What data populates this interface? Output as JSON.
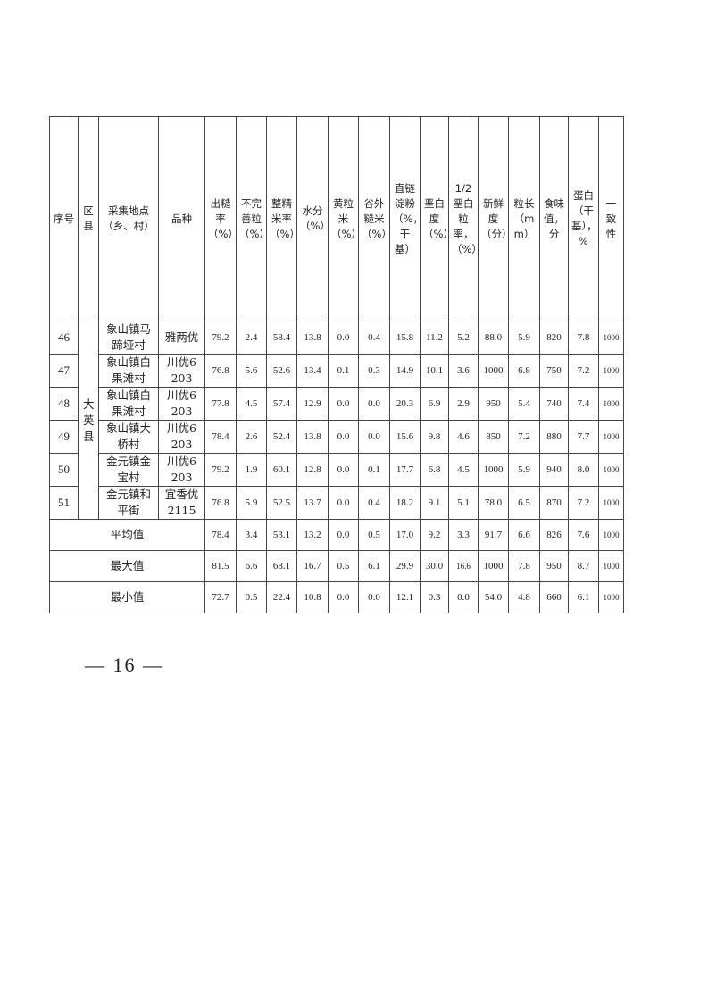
{
  "headers": [
    "序号",
    "区县",
    "采集地点（乡、村）",
    "品种",
    "出糙率（%）",
    "不完善粒（%）",
    "整精米率（%）",
    "水分（%）",
    "黄粒米（%）",
    "谷外糙米（%）",
    "直链淀粉（%，干基）",
    "垩白度（%）",
    "1/2垩白粒率，（%）",
    "新鲜度（分）",
    "粒长（mm）",
    "食味值，分",
    "蛋白（干基），%",
    "一致性"
  ],
  "county": "大英县",
  "rows": [
    {
      "no": "46",
      "place": "象山镇马蹄垭村",
      "variety": "雅两优",
      "v": [
        "79.2",
        "2.4",
        "58.4",
        "13.8",
        "0.0",
        "0.4",
        "15.8",
        "11.2",
        "5.2",
        "88.0",
        "5.9",
        "820",
        "7.8",
        "1000"
      ]
    },
    {
      "no": "47",
      "place": "象山镇白果滩村",
      "variety": "川优6203",
      "v": [
        "76.8",
        "5.6",
        "52.6",
        "13.4",
        "0.1",
        "0.3",
        "14.9",
        "10.1",
        "3.6",
        "1000",
        "6.8",
        "750",
        "7.2",
        "1000"
      ]
    },
    {
      "no": "48",
      "place": "象山镇白果滩村",
      "variety": "川优6203",
      "v": [
        "77.8",
        "4.5",
        "57.4",
        "12.9",
        "0.0",
        "0.0",
        "20.3",
        "6.9",
        "2.9",
        "950",
        "5.4",
        "740",
        "7.4",
        "1000"
      ]
    },
    {
      "no": "49",
      "place": "象山镇大桥村",
      "variety": "川优6203",
      "v": [
        "78.4",
        "2.6",
        "52.4",
        "13.8",
        "0.0",
        "0.0",
        "15.6",
        "9.8",
        "4.6",
        "850",
        "7.2",
        "880",
        "7.7",
        "1000"
      ]
    },
    {
      "no": "50",
      "place": "金元镇金宝村",
      "variety": "川优6203",
      "v": [
        "79.2",
        "1.9",
        "60.1",
        "12.8",
        "0.0",
        "0.1",
        "17.7",
        "6.8",
        "4.5",
        "1000",
        "5.9",
        "940",
        "8.0",
        "1000"
      ]
    },
    {
      "no": "51",
      "place": "金元镇和平街",
      "variety": "宜香优2115",
      "v": [
        "76.8",
        "5.9",
        "52.5",
        "13.7",
        "0.0",
        "0.4",
        "18.2",
        "9.1",
        "5.1",
        "78.0",
        "6.5",
        "870",
        "7.2",
        "1000"
      ]
    }
  ],
  "summary": [
    {
      "label": "平均值",
      "v": [
        "78.4",
        "3.4",
        "53.1",
        "13.2",
        "0.0",
        "0.5",
        "17.0",
        "9.2",
        "3.3",
        "91.7",
        "6.6",
        "826",
        "7.6",
        "1000"
      ]
    },
    {
      "label": "最大值",
      "v": [
        "81.5",
        "6.6",
        "68.1",
        "16.7",
        "0.5",
        "6.1",
        "29.9",
        "30.0",
        "16.6",
        "1000",
        "7.8",
        "950",
        "8.7",
        "1000"
      ]
    },
    {
      "label": "最小值",
      "v": [
        "72.7",
        "0.5",
        "22.4",
        "10.8",
        "0.0",
        "0.0",
        "12.1",
        "0.3",
        "0.0",
        "54.0",
        "4.8",
        "660",
        "6.1",
        "1000"
      ]
    }
  ],
  "page_number": "— 16 —"
}
